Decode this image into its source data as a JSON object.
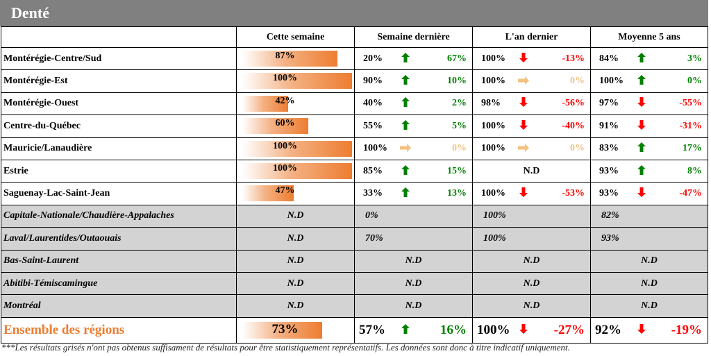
{
  "title": "Denté",
  "columns": [
    "Cette semaine",
    "Semaine dernière",
    "L'an dernier",
    "Moyenne 5 ans"
  ],
  "rows": [
    {
      "region": "Montérégie-Centre/Sud",
      "cette_semaine": "87%",
      "cette_pct": 87,
      "sd": {
        "value": "20%",
        "dir": "up",
        "delta": "67%"
      },
      "ad": {
        "value": "100%",
        "dir": "down",
        "delta": "-13%"
      },
      "m5": {
        "value": "84%",
        "dir": "up",
        "delta": "3%"
      }
    },
    {
      "region": "Montérégie-Est",
      "cette_semaine": "100%",
      "cette_pct": 100,
      "sd": {
        "value": "90%",
        "dir": "up",
        "delta": "10%"
      },
      "ad": {
        "value": "100%",
        "dir": "same",
        "delta": "0%"
      },
      "m5": {
        "value": "100%",
        "dir": "up",
        "delta": "0%"
      }
    },
    {
      "region": "Montérégie-Ouest",
      "cette_semaine": "42%",
      "cette_pct": 42,
      "sd": {
        "value": "40%",
        "dir": "up",
        "delta": "2%"
      },
      "ad": {
        "value": "98%",
        "dir": "down",
        "delta": "-56%"
      },
      "m5": {
        "value": "97%",
        "dir": "down",
        "delta": "-55%"
      }
    },
    {
      "region": "Centre-du-Québec",
      "cette_semaine": "60%",
      "cette_pct": 60,
      "sd": {
        "value": "55%",
        "dir": "up",
        "delta": "5%"
      },
      "ad": {
        "value": "100%",
        "dir": "down",
        "delta": "-40%"
      },
      "m5": {
        "value": "91%",
        "dir": "down",
        "delta": "-31%"
      }
    },
    {
      "region": "Mauricie/Lanaudière",
      "cette_semaine": "100%",
      "cette_pct": 100,
      "sd": {
        "value": "100%",
        "dir": "same",
        "delta": "0%"
      },
      "ad": {
        "value": "100%",
        "dir": "same",
        "delta": "0%"
      },
      "m5": {
        "value": "83%",
        "dir": "up",
        "delta": "17%"
      }
    },
    {
      "region": "Estrie",
      "cette_semaine": "100%",
      "cette_pct": 100,
      "sd": {
        "value": "85%",
        "dir": "up",
        "delta": "15%"
      },
      "ad": {
        "text": "N.D"
      },
      "m5": {
        "value": "93%",
        "dir": "up",
        "delta": "8%"
      }
    },
    {
      "region": "Saguenay-Lac-Saint-Jean",
      "cette_semaine": "47%",
      "cette_pct": 47,
      "sd": {
        "value": "33%",
        "dir": "up",
        "delta": "13%"
      },
      "ad": {
        "value": "100%",
        "dir": "down",
        "delta": "-53%"
      },
      "m5": {
        "value": "93%",
        "dir": "down",
        "delta": "-47%"
      }
    }
  ],
  "grey_rows": [
    {
      "region": "Capitale-Nationale/Chaudière-Appalaches",
      "cette_semaine": "N.D",
      "sd": "0%",
      "ad": "100%",
      "m5": "82%"
    },
    {
      "region": "Laval/Laurentides/Outaouais",
      "cette_semaine": "N.D",
      "sd": "70%",
      "ad": "100%",
      "m5": "93%"
    },
    {
      "region": "Bas-Saint-Laurent",
      "cette_semaine": "N.D",
      "sd": "N.D",
      "ad": "N.D",
      "m5": "N.D"
    },
    {
      "region": "Abitibi-Témiscamingue",
      "cette_semaine": "N.D",
      "sd": "N.D",
      "ad": "N.D",
      "m5": "N.D"
    },
    {
      "region": "Montréal",
      "cette_semaine": "N.D",
      "sd": "N.D",
      "ad": "N.D",
      "m5": "N.D"
    }
  ],
  "total": {
    "region": "Ensemble des régions",
    "cette_semaine": "73%",
    "cette_pct": 73,
    "sd": {
      "value": "57%",
      "dir": "up",
      "delta": "16%"
    },
    "ad": {
      "value": "100%",
      "dir": "down",
      "delta": "-27%"
    },
    "m5": {
      "value": "92%",
      "dir": "down",
      "delta": "-19%"
    }
  },
  "footnote": "***Les résultats grisés n'ont pas obtenus suffisament de résultats pour être statistiquement représentatifs. Les données sont donc à titre indicatif uniquement.",
  "colors": {
    "accent": "#ED7D31",
    "up": "#008000",
    "down": "#ff0000",
    "same": "#f4c27f",
    "grey": "#d3d3d3",
    "header": "#808080"
  },
  "arrows": {
    "up": "🡅",
    "down": "🡇",
    "same": "➡"
  }
}
